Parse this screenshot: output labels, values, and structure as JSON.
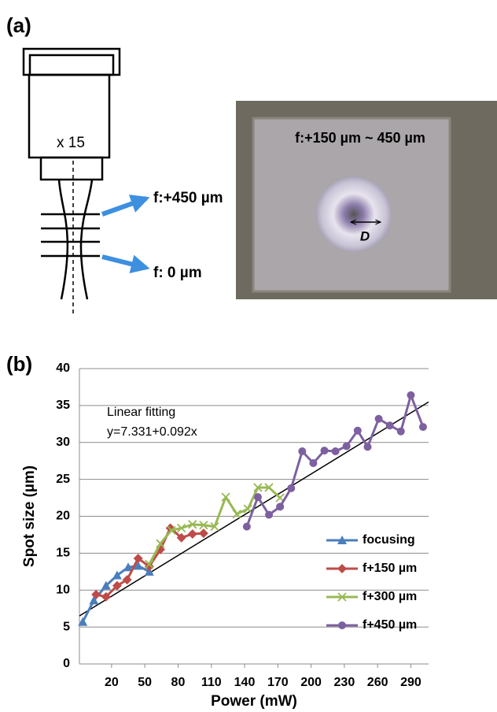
{
  "panel_a": {
    "label": "(a)",
    "magnification": "x 15",
    "focus_top": "f:+450 µm",
    "focus_bottom": "f: 0 µm",
    "photo_caption": "f:+150 µm ~ 450 µm",
    "diameter_label": "D"
  },
  "panel_b": {
    "label": "(b)"
  },
  "chart_data": {
    "type": "line",
    "x_label": "Power  (mW)",
    "y_label": "Spot   size (µm)",
    "annotations": [
      "Linear fitting",
      "y=7.331+0.092x"
    ],
    "fit": {
      "intercept": 7.331,
      "slope": 0.092,
      "color": "#000000"
    },
    "xlim": [
      -9,
      306
    ],
    "xticks": [
      20,
      50,
      80,
      110,
      140,
      170,
      200,
      230,
      260,
      290
    ],
    "ylim": [
      0,
      40
    ],
    "yticks": [
      0,
      5,
      10,
      15,
      20,
      25,
      30,
      35,
      40
    ],
    "grid": true,
    "legend": "lower right",
    "series": [
      {
        "name": "focusing",
        "color": "#4a7ebb",
        "marker": "triangle",
        "x": [
          -6,
          4,
          15,
          25,
          35,
          44,
          54
        ],
        "values": [
          5.7,
          8.6,
          10.6,
          12.0,
          13.1,
          13.3,
          12.5
        ]
      },
      {
        "name": "f+150 µm",
        "color": "#be4b48",
        "marker": "diamond",
        "x": [
          6,
          15,
          25,
          34,
          44,
          54,
          64,
          73,
          83,
          93,
          103
        ],
        "values": [
          9.4,
          9.1,
          10.6,
          11.4,
          14.3,
          13.2,
          15.5,
          18.4,
          17.1,
          17.6,
          17.7
        ]
      },
      {
        "name": "f+300 µm",
        "color": "#98b954",
        "marker": "x",
        "x": [
          54,
          64,
          74,
          83,
          93,
          103,
          113,
          123,
          133,
          143,
          152,
          162,
          172
        ],
        "values": [
          13.5,
          16.3,
          18.1,
          18.4,
          18.9,
          18.8,
          18.6,
          22.6,
          20.3,
          21.0,
          23.9,
          23.9,
          22.5
        ]
      },
      {
        "name": "f+450 µm",
        "color": "#7d60a0",
        "marker": "circle",
        "x": [
          142,
          152,
          162,
          172,
          182,
          192,
          202,
          212,
          222,
          232,
          242,
          251,
          261,
          271,
          281,
          290,
          301
        ],
        "values": [
          18.6,
          22.6,
          20.2,
          21.3,
          23.8,
          28.8,
          27.2,
          28.9,
          28.8,
          29.5,
          31.6,
          29.4,
          33.2,
          32.3,
          31.5,
          36.4,
          32.1
        ]
      }
    ]
  }
}
